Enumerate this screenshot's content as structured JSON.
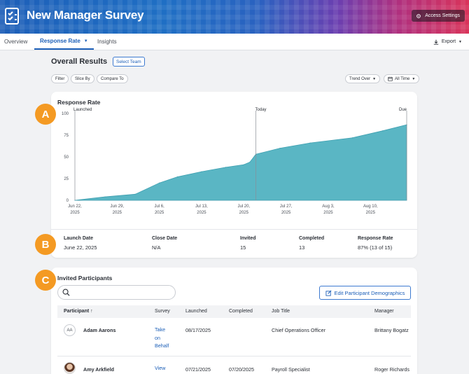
{
  "app": {
    "title": "New Manager Survey",
    "access_settings": "Access Settings"
  },
  "tabs": [
    {
      "label": "Overview"
    },
    {
      "label": "Response Rate"
    },
    {
      "label": "Insights"
    }
  ],
  "export_label": "Export",
  "results": {
    "title": "Overall Results",
    "select_team": "Select Team",
    "filters": [
      "Filter",
      "Slice By",
      "Compare To"
    ],
    "trend_over": "Trend Over",
    "all_time": "All Time"
  },
  "badges": [
    "A",
    "B",
    "C"
  ],
  "chart_card": {
    "title": "Response Rate"
  },
  "chart_data": {
    "type": "area",
    "title": "Response Rate",
    "x_ticks": [
      "Jun 22, 2025",
      "Jun 29, 2025",
      "Jul 6, 2025",
      "Jul 13, 2025",
      "Jul 20, 2025",
      "Jul 27, 2025",
      "Aug 3, 2025",
      "Aug 10, 2025"
    ],
    "y_ticks": [
      "0",
      "25",
      "50",
      "75",
      "100"
    ],
    "ylim": [
      0,
      100
    ],
    "markers": [
      {
        "label": "Launched",
        "day": 0
      },
      {
        "label": "Today",
        "day": 30
      },
      {
        "label": "Due",
        "day": 55
      }
    ],
    "x_days": [
      0,
      5,
      10,
      14,
      17,
      21,
      25,
      28,
      29,
      30,
      34,
      39,
      46,
      51,
      55
    ],
    "values": [
      0,
      4,
      7,
      20,
      27,
      33,
      38,
      41,
      44,
      53,
      60,
      66,
      72,
      80,
      87
    ],
    "color": "#5ab6c4"
  },
  "stats": [
    {
      "label": "Launch Date",
      "value": "June 22, 2025"
    },
    {
      "label": "Close Date",
      "value": "N/A"
    },
    {
      "label": "Invited",
      "value": "15"
    },
    {
      "label": "Completed",
      "value": "13"
    },
    {
      "label": "Response Rate",
      "value": "87% (13 of 15)"
    }
  ],
  "participants": {
    "title": "Invited Participants",
    "search_placeholder": "",
    "edit_button": "Edit Participant Demographics",
    "columns": [
      "Participant",
      "Survey",
      "Launched",
      "Completed",
      "Job Title",
      "Manager"
    ],
    "rows": [
      {
        "initials": "AA",
        "name": "Adam Aarons",
        "survey_lines": [
          "Take",
          "on",
          "Behalf"
        ],
        "launched": "08/17/2025",
        "completed": "",
        "job_title": "Chief Operations Officer",
        "manager": "Brittany Bogatz"
      },
      {
        "initials": "",
        "name": "Amy Arkfield",
        "survey_lines": [
          "View"
        ],
        "launched": "07/21/2025",
        "completed": "07/20/2025",
        "job_title": "Payroll Specialist",
        "manager": "Roger Richards"
      }
    ]
  }
}
